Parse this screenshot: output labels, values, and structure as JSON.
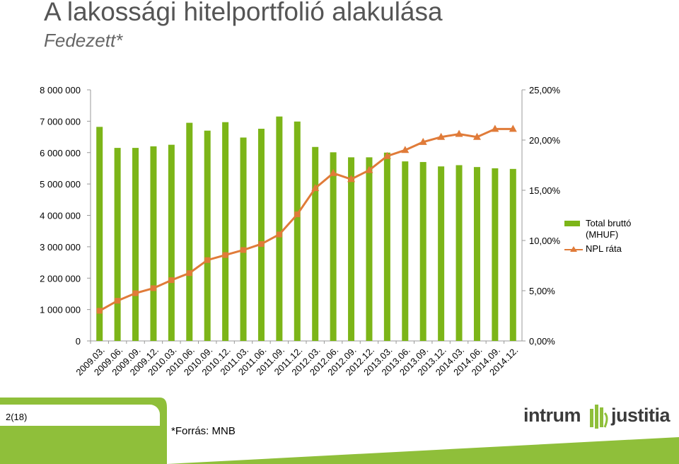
{
  "header": {
    "title": "A lakossági hitelportfolió alakulása",
    "subtitle": "Fedezett*"
  },
  "footer": {
    "page_number": "2(18)",
    "source": "*Forrás: MNB",
    "logo_left": "intrum",
    "logo_right": "justitia"
  },
  "colors": {
    "bar": "#7cb518",
    "line": "#e07b39",
    "footer_green": "#8fbf3a",
    "logo_dark": "#3b3b3b"
  },
  "chart_data": {
    "type": "bar",
    "categories": [
      "2009.03.",
      "2009.06.",
      "2009.09.",
      "2009.12.",
      "2010.03.",
      "2010.06.",
      "2010.09.",
      "2010.12.",
      "2011.03.",
      "2011.06.",
      "2011.09.",
      "2011.12.",
      "2012.03.",
      "2012.06.",
      "2012.09.",
      "2012.12.",
      "2013.03.",
      "2013.06.",
      "2013.09.",
      "2013.12.",
      "2014.03.",
      "2014.06.",
      "2014.09.",
      "2014.12."
    ],
    "series": [
      {
        "name": "Total bruttó (MHUF)",
        "type": "bar",
        "axis": "left",
        "values": [
          6820000,
          6150000,
          6150000,
          6200000,
          6250000,
          6950000,
          6700000,
          6970000,
          6480000,
          6760000,
          7150000,
          6990000,
          6180000,
          6010000,
          5850000,
          5850000,
          6000000,
          5720000,
          5700000,
          5560000,
          5600000,
          5540000,
          5500000,
          5480000
        ]
      },
      {
        "name": "NPL ráta",
        "type": "line",
        "axis": "right",
        "values": [
          3.0,
          4.0,
          4.75,
          5.25,
          6.05,
          6.75,
          8.05,
          8.55,
          9.05,
          9.65,
          10.6,
          12.6,
          15.2,
          16.7,
          16.1,
          17.0,
          18.4,
          19.0,
          19.8,
          20.3,
          20.6,
          20.3,
          21.1,
          21.1
        ]
      }
    ],
    "y_left": {
      "ticks": [
        "8 000 000",
        "7 000 000",
        "6 000 000",
        "5 000 000",
        "4 000 000",
        "3 000 000",
        "2 000 000",
        "1 000 000",
        "0"
      ],
      "ylim": [
        0,
        8000000
      ]
    },
    "y_right": {
      "ticks": [
        "25,00%",
        "20,00%",
        "15,00%",
        "10,00%",
        "5,00%",
        "0,00%"
      ],
      "ylim": [
        0,
        25
      ]
    },
    "legend_position": "right",
    "grid": false
  }
}
